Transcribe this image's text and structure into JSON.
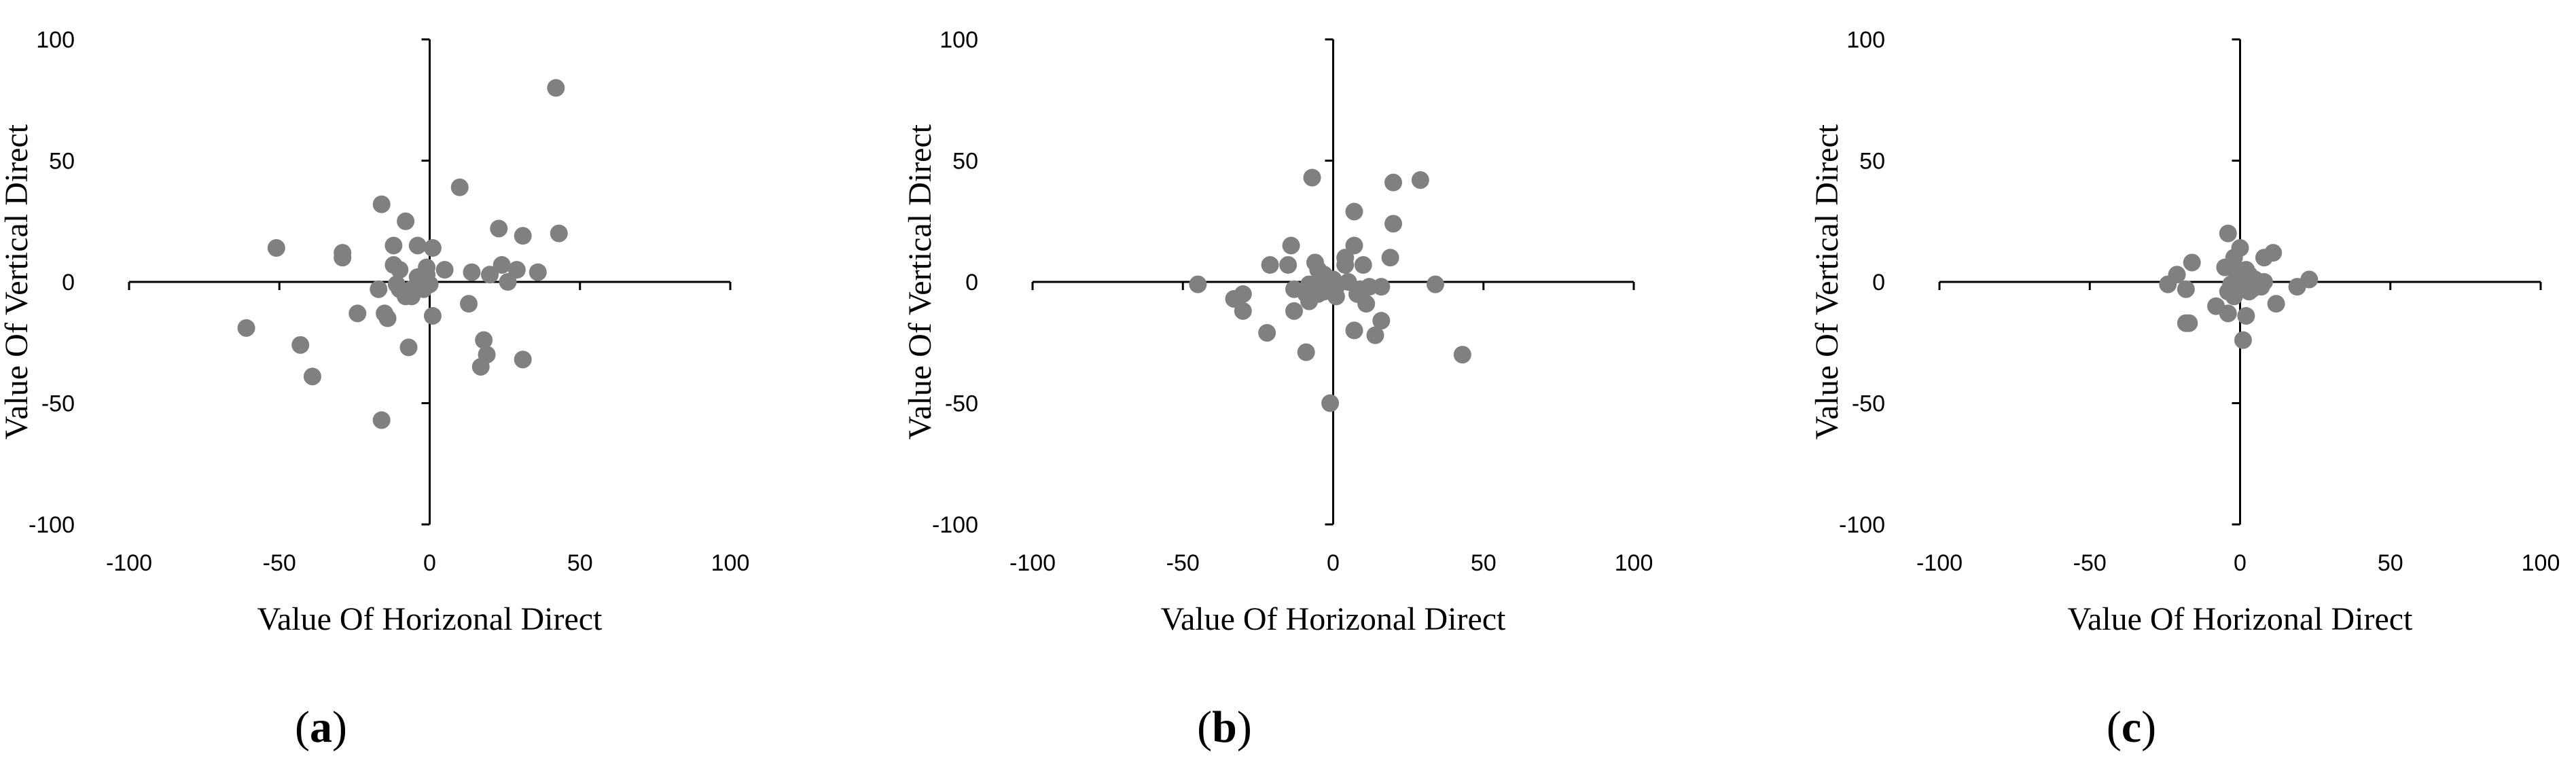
{
  "chart_data": [
    {
      "type": "scatter",
      "panel_label": "a",
      "xlabel": "Value Of Horizonal Direct",
      "ylabel": "Value Of Vertical Direct",
      "xlim": [
        -100,
        100
      ],
      "ylim": [
        -100,
        100
      ],
      "xticks": [
        -100,
        -50,
        0,
        50,
        100
      ],
      "yticks": [
        -100,
        -50,
        0,
        50,
        100
      ],
      "marker_color": "#808080",
      "grid": false,
      "points": [
        [
          42,
          80
        ],
        [
          10,
          39
        ],
        [
          43,
          20
        ],
        [
          31,
          19
        ],
        [
          23,
          22
        ],
        [
          -16,
          32
        ],
        [
          -8,
          25
        ],
        [
          -51,
          14
        ],
        [
          -29,
          12
        ],
        [
          -29,
          10
        ],
        [
          -12,
          15
        ],
        [
          -4,
          15
        ],
        [
          1,
          14
        ],
        [
          -12,
          7
        ],
        [
          -10,
          5
        ],
        [
          -1,
          6
        ],
        [
          -1,
          3
        ],
        [
          5,
          5
        ],
        [
          14,
          4
        ],
        [
          20,
          3
        ],
        [
          24,
          7
        ],
        [
          29,
          5
        ],
        [
          36,
          4
        ],
        [
          26,
          0
        ],
        [
          -4,
          2
        ],
        [
          -1,
          -1
        ],
        [
          -6,
          -3
        ],
        [
          -10,
          -3
        ],
        [
          -11,
          -1
        ],
        [
          -17,
          -3
        ],
        [
          0,
          -1
        ],
        [
          -2,
          -3
        ],
        [
          -8,
          -6
        ],
        [
          -6,
          -6
        ],
        [
          13,
          -9
        ],
        [
          -24,
          -13
        ],
        [
          -15,
          -13
        ],
        [
          -14,
          -15
        ],
        [
          1,
          -14
        ],
        [
          -7,
          -27
        ],
        [
          18,
          -24
        ],
        [
          19,
          -30
        ],
        [
          31,
          -32
        ],
        [
          -61,
          -19
        ],
        [
          -43,
          -26
        ],
        [
          -39,
          -39
        ],
        [
          17,
          -35
        ],
        [
          -16,
          -57
        ]
      ]
    },
    {
      "type": "scatter",
      "panel_label": "b",
      "xlabel": "Value Of Horizonal Direct",
      "ylabel": "Value Of Vertical Direct",
      "xlim": [
        -100,
        100
      ],
      "ylim": [
        -100,
        100
      ],
      "xticks": [
        -100,
        -50,
        0,
        50,
        100
      ],
      "yticks": [
        -100,
        -50,
        0,
        50,
        100
      ],
      "marker_color": "#808080",
      "grid": false,
      "points": [
        [
          -7,
          43
        ],
        [
          20,
          41
        ],
        [
          29,
          42
        ],
        [
          7,
          29
        ],
        [
          20,
          24
        ],
        [
          -14,
          15
        ],
        [
          7,
          15
        ],
        [
          19,
          10
        ],
        [
          -21,
          7
        ],
        [
          -15,
          7
        ],
        [
          -6,
          8
        ],
        [
          -5,
          5
        ],
        [
          4,
          7
        ],
        [
          4,
          10
        ],
        [
          10,
          7
        ],
        [
          -3,
          3
        ],
        [
          0,
          1
        ],
        [
          -8,
          -1
        ],
        [
          -6,
          -2
        ],
        [
          -2,
          0
        ],
        [
          -4,
          -1
        ],
        [
          1,
          -2
        ],
        [
          5,
          0
        ],
        [
          9,
          -3
        ],
        [
          12,
          -2
        ],
        [
          16,
          -2
        ],
        [
          34,
          -1
        ],
        [
          -45,
          -1
        ],
        [
          -33,
          -7
        ],
        [
          -30,
          -5
        ],
        [
          -13,
          -3
        ],
        [
          -9,
          -5
        ],
        [
          -8,
          -8
        ],
        [
          -5,
          -5
        ],
        [
          -3,
          -4
        ],
        [
          1,
          -6
        ],
        [
          8,
          -5
        ],
        [
          11,
          -9
        ],
        [
          -30,
          -12
        ],
        [
          -13,
          -12
        ],
        [
          16,
          -16
        ],
        [
          14,
          -22
        ],
        [
          -22,
          -21
        ],
        [
          -9,
          -29
        ],
        [
          7,
          -20
        ],
        [
          43,
          -30
        ],
        [
          -1,
          -50
        ]
      ]
    },
    {
      "type": "scatter",
      "panel_label": "c",
      "xlabel": "Value Of Horizonal Direct",
      "ylabel": "Value Of Vertical Direct",
      "xlim": [
        -100,
        100
      ],
      "ylim": [
        -100,
        100
      ],
      "xticks": [
        -100,
        -50,
        0,
        50,
        100
      ],
      "yticks": [
        -100,
        -50,
        0,
        50,
        100
      ],
      "marker_color": "#808080",
      "grid": false,
      "points": [
        [
          -4,
          20
        ],
        [
          11,
          12
        ],
        [
          0,
          14
        ],
        [
          8,
          10
        ],
        [
          -2,
          10
        ],
        [
          -16,
          8
        ],
        [
          -5,
          6
        ],
        [
          -2,
          6
        ],
        [
          0,
          4
        ],
        [
          2,
          5
        ],
        [
          3,
          3
        ],
        [
          -21,
          3
        ],
        [
          -1,
          2
        ],
        [
          1,
          1
        ],
        [
          5,
          1
        ],
        [
          8,
          0
        ],
        [
          23,
          1
        ],
        [
          -24,
          -1
        ],
        [
          -3,
          -1
        ],
        [
          -1,
          -2
        ],
        [
          2,
          -2
        ],
        [
          4,
          -3
        ],
        [
          7,
          -2
        ],
        [
          19,
          -2
        ],
        [
          -18,
          -3
        ],
        [
          -4,
          -4
        ],
        [
          3,
          -4
        ],
        [
          -2,
          -6
        ],
        [
          12,
          -9
        ],
        [
          -8,
          -10
        ],
        [
          -4,
          -13
        ],
        [
          2,
          -14
        ],
        [
          -18,
          -17
        ],
        [
          -17,
          -17
        ],
        [
          1,
          -24
        ]
      ]
    }
  ]
}
